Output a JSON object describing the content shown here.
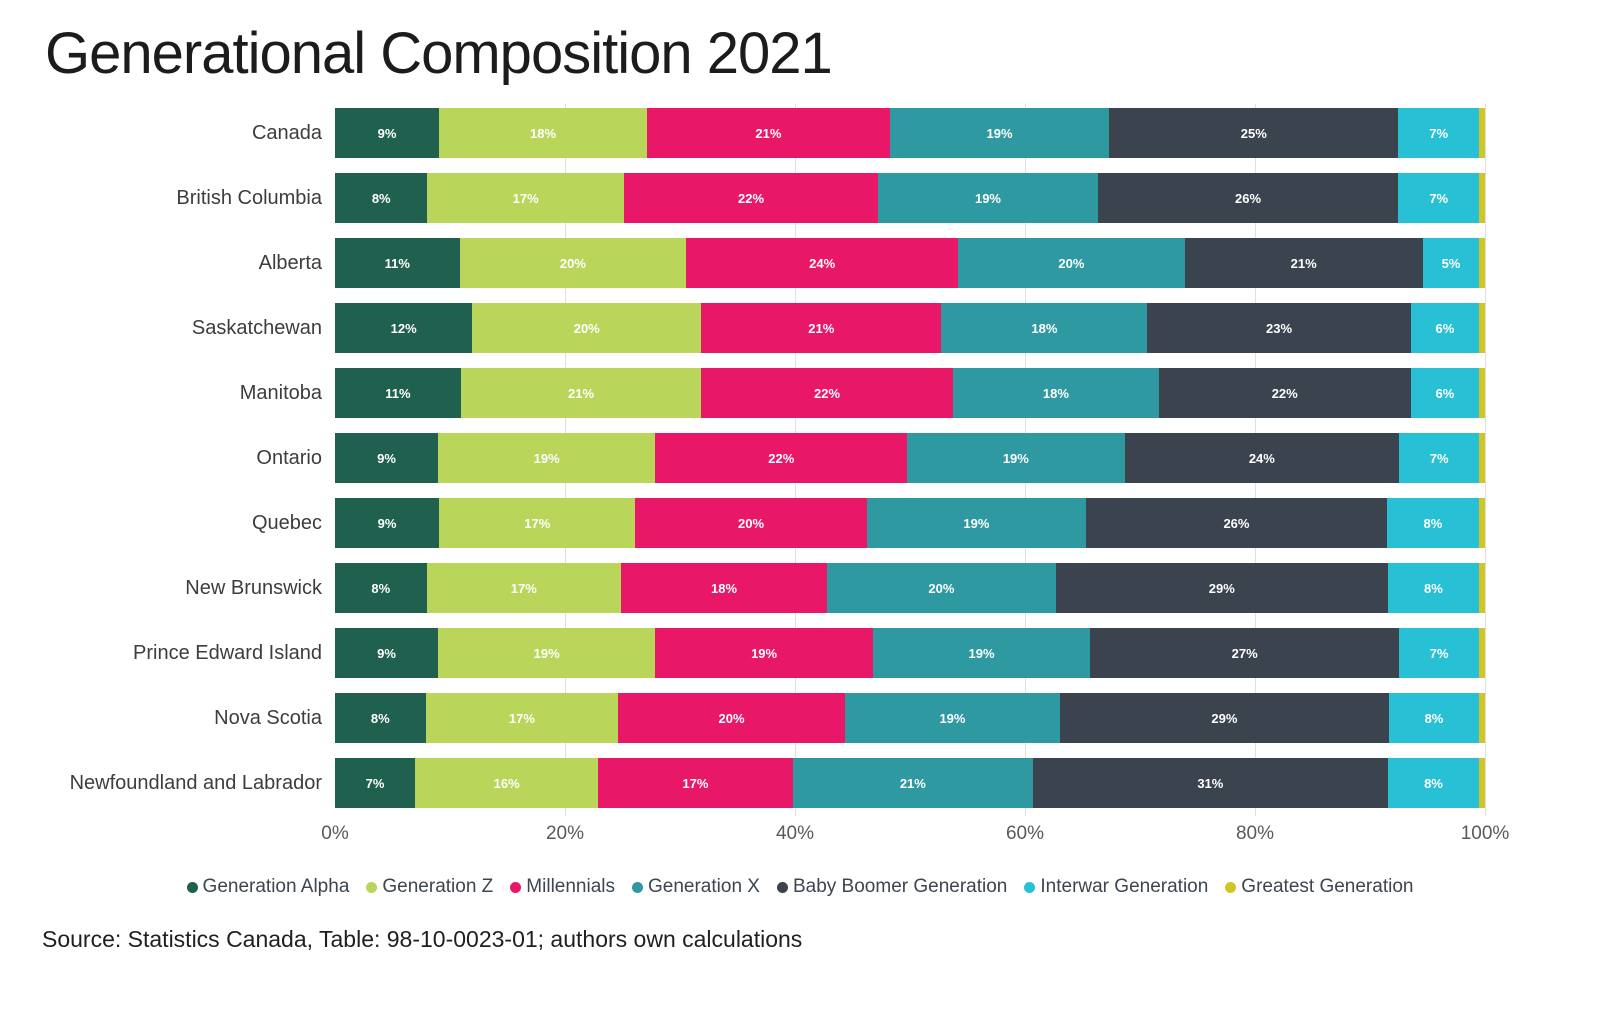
{
  "title": "Generational Composition 2021",
  "source": "Source: Statistics Canada, Table: 98-10-0023-01; authors own calculations",
  "chart_data": {
    "type": "bar",
    "orientation": "horizontal",
    "stacked": true,
    "title": "Generational Composition 2021",
    "value_suffix": "%",
    "xlim": [
      0,
      100
    ],
    "x_tick_labels": [
      "0%",
      "20%",
      "40%",
      "60%",
      "80%",
      "100%"
    ],
    "legend_position": "bottom",
    "grid": "vertical-light",
    "categories": [
      "Canada",
      "British Columbia",
      "Alberta",
      "Saskatchewan",
      "Manitoba",
      "Ontario",
      "Quebec",
      "New Brunswick",
      "Prince Edward Island",
      "Nova Scotia",
      "Newfoundland and Labrador"
    ],
    "series": [
      {
        "name": "Generation Alpha",
        "color": "#20604e",
        "values": [
          9,
          8,
          11,
          12,
          11,
          9,
          9,
          8,
          9,
          8,
          7
        ]
      },
      {
        "name": "Generation Z",
        "color": "#b9d65a",
        "values": [
          18,
          17,
          20,
          20,
          21,
          19,
          17,
          17,
          19,
          17,
          16
        ]
      },
      {
        "name": "Millennials",
        "color": "#e91768",
        "values": [
          21,
          22,
          24,
          21,
          22,
          22,
          20,
          18,
          19,
          20,
          17
        ]
      },
      {
        "name": "Generation X",
        "color": "#2f99a2",
        "values": [
          19,
          19,
          20,
          18,
          18,
          19,
          19,
          20,
          19,
          19,
          21
        ]
      },
      {
        "name": "Baby Boomer Generation",
        "color": "#3b444e",
        "values": [
          25,
          26,
          21,
          23,
          22,
          24,
          26,
          29,
          27,
          29,
          31
        ]
      },
      {
        "name": "Interwar Generation",
        "color": "#28c0d5",
        "values": [
          7,
          7,
          5,
          6,
          6,
          7,
          8,
          8,
          7,
          8,
          8
        ]
      },
      {
        "name": "Greatest Generation",
        "color": "#d3c428",
        "show_value_labels": false,
        "values": [
          0.5,
          0.5,
          0.5,
          0.5,
          0.5,
          0.5,
          0.5,
          0.5,
          0.5,
          0.5,
          0.5
        ]
      }
    ]
  }
}
